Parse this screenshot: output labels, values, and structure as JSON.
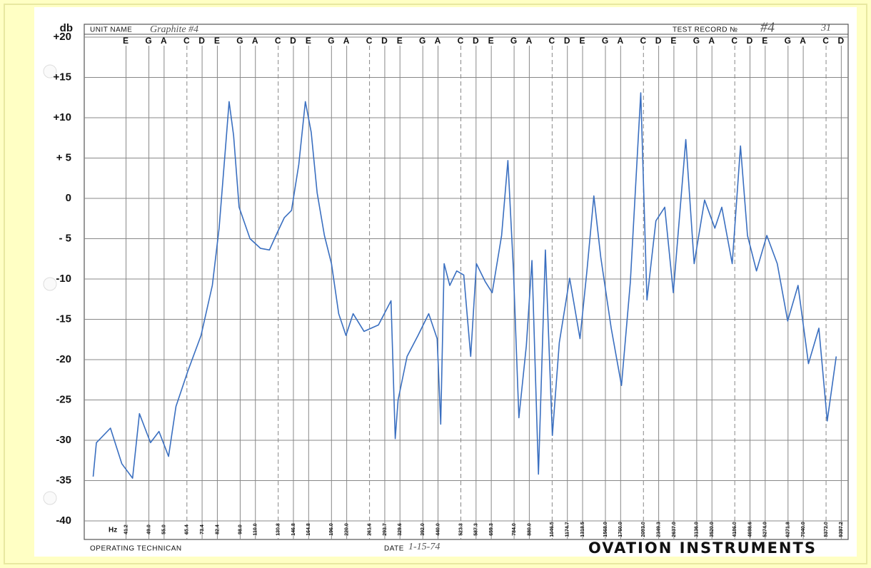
{
  "chart_data": {
    "type": "line",
    "y_label": "db",
    "x_label": "Hz",
    "xlim": [
      30,
      9900
    ],
    "log_x": true,
    "ylim": [
      -40,
      20
    ],
    "yticks": [
      {
        "value": 20,
        "label": "+20"
      },
      {
        "value": 15,
        "label": "+15"
      },
      {
        "value": 10,
        "label": "+10"
      },
      {
        "value": 5,
        "label": "+ 5"
      },
      0,
      {
        "value": -5,
        "label": "- 5"
      },
      -10,
      -15,
      -20,
      -25,
      -30,
      -35,
      -40
    ],
    "xticks": [
      41.2,
      {
        "value": 49,
        "label": "49.0"
      },
      {
        "value": 55,
        "label": "55.0"
      },
      65.4,
      73.4,
      82.4,
      {
        "value": 98,
        "label": "98.0"
      },
      {
        "value": 110,
        "label": "110.0"
      },
      130.8,
      146.8,
      164.8,
      {
        "value": 196,
        "label": "196.0"
      },
      {
        "value": 220,
        "label": "220.0"
      },
      261.6,
      293.7,
      329.6,
      {
        "value": 392,
        "label": "392.0"
      },
      {
        "value": 440,
        "label": "440.0"
      },
      523.3,
      587.3,
      659.3,
      {
        "value": 784,
        "label": "784.0"
      },
      {
        "value": 880,
        "label": "880.0"
      },
      1046.5,
      1174.7,
      1318.5,
      {
        "value": 1568,
        "label": "1568.0"
      },
      {
        "value": 1760,
        "label": "1760.0"
      },
      {
        "value": 2093,
        "label": "2093.0"
      },
      2349.3,
      {
        "value": 2637,
        "label": "2637.0"
      },
      {
        "value": 3136,
        "label": "3136.0"
      },
      {
        "value": 3520,
        "label": "3520.0"
      },
      {
        "value": 4186,
        "label": "4186.0"
      },
      4698.6,
      {
        "value": 5274,
        "label": "5274.0"
      },
      6271.8,
      {
        "value": 7040,
        "label": "7040.0"
      },
      {
        "value": 8372,
        "label": "8372.0"
      },
      9397.2
    ],
    "notes": [
      "E",
      "G",
      "A",
      "C",
      "D",
      "E",
      "G",
      "A",
      "C",
      "D",
      "E",
      "G",
      "A",
      "C",
      "D",
      "E",
      "G",
      "A",
      "C",
      "D",
      "E",
      "G",
      "A",
      "C",
      "D",
      "E",
      "G",
      "A",
      "C",
      "D",
      "E",
      "G",
      "A",
      "C",
      "D",
      "E",
      "G",
      "A",
      "C",
      "D"
    ],
    "grid": true,
    "x": [
      32.1,
      32.9,
      36.6,
      39.9,
      43.3,
      45.6,
      49.6,
      52.9,
      56.9,
      60.2,
      65.9,
      72.8,
      79.3,
      83.5,
      87.9,
      90.1,
      93.2,
      97.2,
      105.6,
      114.4,
      122.4,
      130,
      137,
      144.7,
      152.9,
      160.7,
      168,
      175.8,
      185.7,
      196,
      207,
      218.8,
      231,
      251,
      280,
      308,
      318,
      325,
      348,
      378,
      410,
      437,
      449,
      461,
      481,
      507,
      535,
      564,
      589,
      629,
      664,
      713,
      748,
      780,
      813,
      860,
      898,
      943,
      994,
      1048,
      1105,
      1195,
      1293,
      1363,
      1436,
      1514,
      1638,
      1771,
      1895,
      2051,
      2150,
      2300,
      2460,
      2625,
      2886,
      3075,
      3328,
      3600,
      3793,
      4105,
      4372,
      4610,
      4937,
      5340,
      5779,
      6254,
      6768,
      7325,
      7928,
      8445,
      9045
    ],
    "series": [
      {
        "color": "#3a6fc0",
        "values": [
          -34.5,
          -30.3,
          -28.5,
          -32.9,
          -34.7,
          -26.7,
          -30.3,
          -28.9,
          -32,
          -25.8,
          -21.4,
          -17,
          -10.8,
          -3.7,
          6.9,
          12,
          7.8,
          -1.1,
          -5,
          -6.2,
          -6.4,
          -4.2,
          -2.4,
          -1.5,
          4.2,
          12,
          8.2,
          0.7,
          -4.6,
          -8.1,
          -14.3,
          -17,
          -14.3,
          -16.5,
          -15.7,
          -12.7,
          -29.8,
          -25,
          -19.6,
          -17,
          -14.3,
          -17.4,
          -28,
          -8.1,
          -10.8,
          -9,
          -9.5,
          -19.6,
          -8.1,
          -10.3,
          -11.7,
          -4.6,
          4.7,
          -9,
          -27.2,
          -18.3,
          -7.7,
          -34.2,
          -6.4,
          -29.4,
          -17.9,
          -9.9,
          -17.4,
          -9,
          0.3,
          -7.3,
          -16.1,
          -23.2,
          -10.4,
          13.1,
          -12.6,
          -2.8,
          -1.1,
          -11.7,
          7.3,
          -8.1,
          -0.2,
          -3.7,
          -1.1,
          -8.1,
          6.5,
          -4.6,
          -9,
          -4.6,
          -8.1,
          -15.2,
          -10.8,
          -20.5,
          -16.1,
          -27.6,
          -19.6
        ]
      }
    ]
  },
  "form": {
    "unit_name_label": "UNIT NAME",
    "unit_name": "Graphite #4",
    "test_record_label": "TEST RECORD №",
    "test_record": "#4",
    "test_record_extra": "31",
    "technician_label": "OPERATING TECHNICAN",
    "date_label": "DATE",
    "date": "1-15-74",
    "brand": "OVATION INSTRUMENTS"
  }
}
